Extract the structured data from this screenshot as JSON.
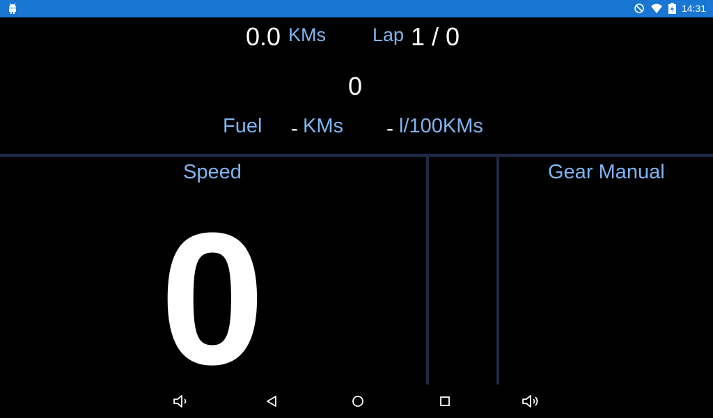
{
  "status_bar": {
    "time": "14:31"
  },
  "trip": {
    "distance_value": "0.0",
    "distance_unit": "KMs",
    "lap_label": "Lap",
    "lap_value": "1 / 0",
    "center_value": "0"
  },
  "fuel": {
    "label": "Fuel",
    "range_value": "-",
    "range_unit": "KMs",
    "consumption_value": "-",
    "consumption_unit": "l/100KMs"
  },
  "speed": {
    "label": "Speed",
    "value": "0"
  },
  "gear": {
    "label": "Gear Manual"
  },
  "nav": {
    "icons": [
      "volume-down-icon",
      "back-icon",
      "home-icon",
      "recents-icon",
      "volume-up-icon"
    ]
  },
  "colors": {
    "accent": "#7fb5f2",
    "status_bar": "#1976d2",
    "divider": "#1d2a45"
  }
}
